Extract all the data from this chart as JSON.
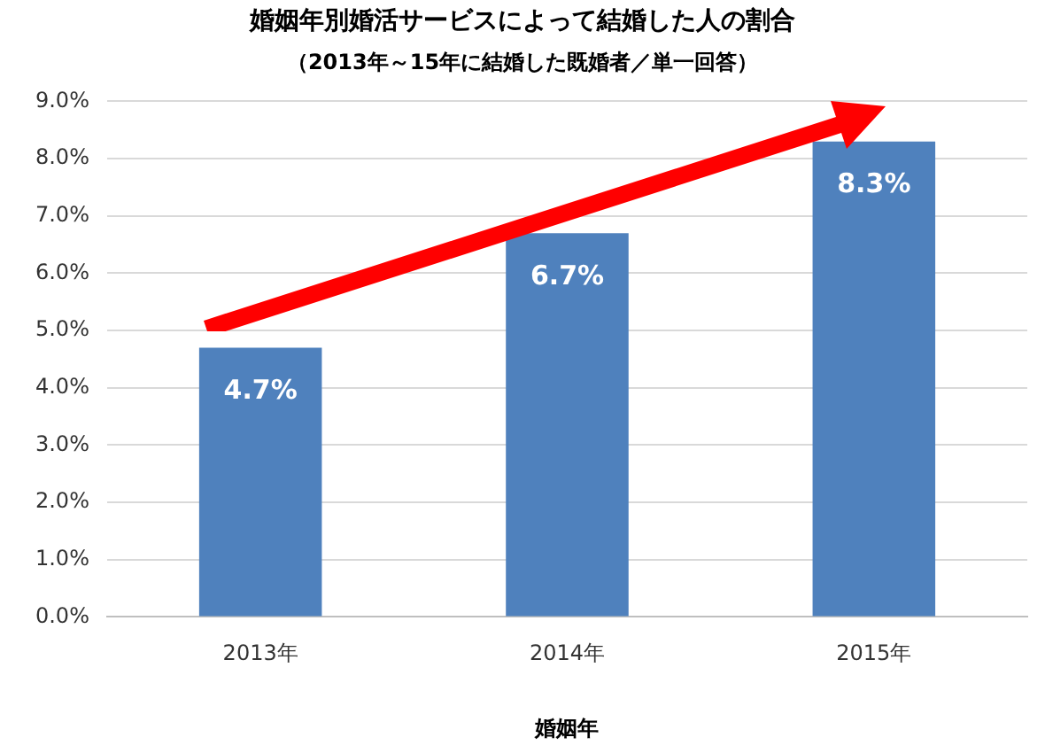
{
  "chart_data": {
    "type": "bar",
    "title": "婚姻年別婚活サービスによって結婚した人の割合",
    "subtitle": "（2013年～15年に結婚した既婚者／単一回答）",
    "xlabel": "婚姻年",
    "categories": [
      "2013年",
      "2014年",
      "2015年"
    ],
    "values": [
      4.7,
      6.7,
      8.3
    ],
    "value_labels": [
      "4.7%",
      "6.7%",
      "8.3%"
    ],
    "color": "#4f81bd",
    "ylim": [
      0,
      9
    ],
    "yticks": [
      {
        "value": 0,
        "label": "0.0%"
      },
      {
        "value": 1,
        "label": "1.0%"
      },
      {
        "value": 2,
        "label": "2.0%"
      },
      {
        "value": 3,
        "label": "3.0%"
      },
      {
        "value": 4,
        "label": "4.0%"
      },
      {
        "value": 5,
        "label": "5.0%"
      },
      {
        "value": 6,
        "label": "6.0%"
      },
      {
        "value": 7,
        "label": "7.0%"
      },
      {
        "value": 8,
        "label": "8.0%"
      },
      {
        "value": 9,
        "label": "9.0%"
      }
    ],
    "grid": "y",
    "legend": false
  }
}
